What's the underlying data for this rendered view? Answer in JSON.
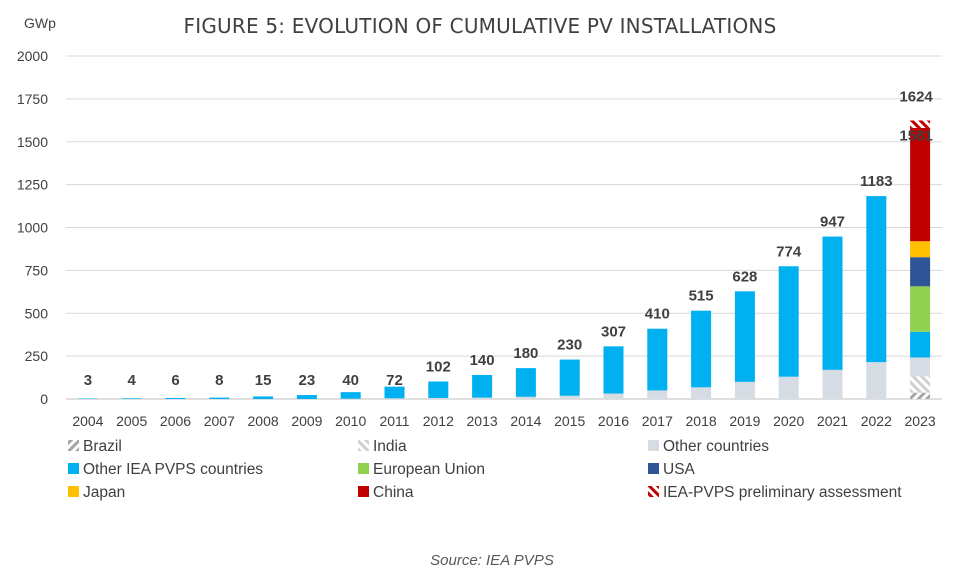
{
  "chart_data": {
    "type": "bar",
    "title": "FIGURE 5: EVOLUTION OF CUMULATIVE PV INSTALLATIONS",
    "ylabel": "GWp",
    "ylim": [
      0,
      2000
    ],
    "yticks": [
      0,
      250,
      500,
      750,
      1000,
      1250,
      1500,
      1750,
      2000
    ],
    "grid": true,
    "legend_position": "bottom",
    "categories": [
      "2004",
      "2005",
      "2006",
      "2007",
      "2008",
      "2009",
      "2010",
      "2011",
      "2012",
      "2013",
      "2014",
      "2015",
      "2016",
      "2017",
      "2018",
      "2019",
      "2020",
      "2021",
      "2022",
      "2023"
    ],
    "totals": [
      3,
      4,
      6,
      8,
      15,
      23,
      40,
      72,
      102,
      140,
      180,
      230,
      307,
      410,
      515,
      628,
      774,
      947,
      1183,
      1581
    ],
    "extra_top_label": {
      "category": "2023",
      "value": 1624
    },
    "series": [
      {
        "name": "Brazil",
        "color": "#bfbfbf",
        "pattern": "brazil",
        "values": [
          0,
          0,
          0,
          0,
          0,
          0,
          0,
          0,
          0,
          0,
          0,
          0,
          0,
          0,
          0,
          0,
          0,
          0,
          0,
          37
        ]
      },
      {
        "name": "India",
        "color": "#d9d9d9",
        "pattern": "india",
        "values": [
          0,
          0,
          0,
          0,
          0,
          0,
          0,
          0,
          0,
          0,
          0,
          0,
          0,
          0,
          0,
          0,
          0,
          0,
          0,
          95
        ]
      },
      {
        "name": "Other countries",
        "color": "#d6dce4",
        "values": [
          0,
          0,
          0,
          0,
          0,
          0,
          2,
          4,
          6,
          8,
          13,
          19,
          32,
          50,
          68,
          100,
          130,
          170,
          215,
          110
        ]
      },
      {
        "name": "Other IEA PVPS countries",
        "color": "#00b0f0",
        "values": [
          3,
          4,
          6,
          8,
          15,
          23,
          38,
          68,
          96,
          132,
          167,
          211,
          275,
          360,
          447,
          528,
          644,
          777,
          968,
          150
        ]
      },
      {
        "name": "European Union",
        "color": "#92d050",
        "values": [
          0,
          0,
          0,
          0,
          0,
          0,
          0,
          0,
          0,
          0,
          0,
          0,
          0,
          0,
          0,
          0,
          0,
          0,
          0,
          265
        ]
      },
      {
        "name": "USA",
        "color": "#2f5597",
        "values": [
          0,
          0,
          0,
          0,
          0,
          0,
          0,
          0,
          0,
          0,
          0,
          0,
          0,
          0,
          0,
          0,
          0,
          0,
          0,
          170
        ]
      },
      {
        "name": "Japan",
        "color": "#ffc000",
        "values": [
          0,
          0,
          0,
          0,
          0,
          0,
          0,
          0,
          0,
          0,
          0,
          0,
          0,
          0,
          0,
          0,
          0,
          0,
          0,
          93
        ]
      },
      {
        "name": "China",
        "color": "#c00000",
        "values": [
          0,
          0,
          0,
          0,
          0,
          0,
          0,
          0,
          0,
          0,
          0,
          0,
          0,
          0,
          0,
          0,
          0,
          0,
          0,
          661
        ]
      },
      {
        "name": "IEA-PVPS preliminary assessment",
        "color": "#c00000",
        "pattern": "prelim",
        "values": [
          0,
          0,
          0,
          0,
          0,
          0,
          0,
          0,
          0,
          0,
          0,
          0,
          0,
          0,
          0,
          0,
          0,
          0,
          0,
          43
        ]
      }
    ],
    "source": "Source: IEA PVPS"
  }
}
